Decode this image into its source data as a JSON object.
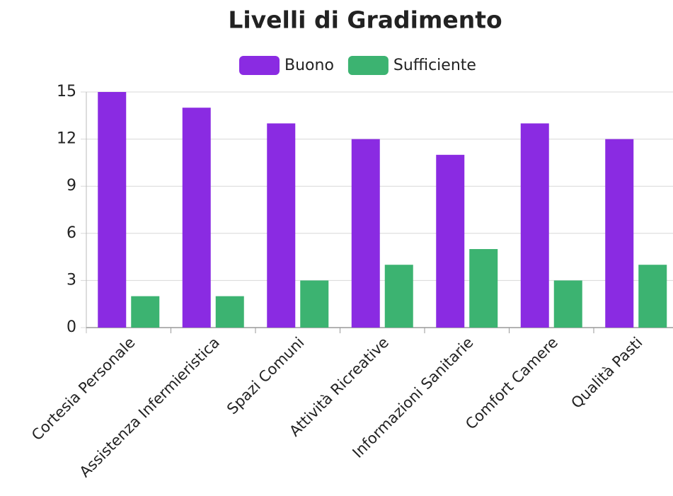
{
  "chart_data": {
    "type": "bar",
    "title": "Livelli di Gradimento",
    "categories": [
      "Cortesia Personale",
      "Assistenza Infermieristica",
      "Spazi Comuni",
      "Attività Ricreative",
      "Informazioni Sanitarie",
      "Comfort Camere",
      "Qualità Pasti"
    ],
    "series": [
      {
        "name": "Buono",
        "color": "#8a2be2",
        "values": [
          15,
          14,
          13,
          12,
          11,
          13,
          12
        ]
      },
      {
        "name": "Sufficiente",
        "color": "#3cb371",
        "values": [
          2,
          2,
          3,
          4,
          5,
          3,
          4
        ]
      }
    ],
    "ylim": [
      0,
      15
    ],
    "yticks": [
      0,
      3,
      6,
      9,
      12,
      15
    ],
    "grid": true,
    "legend": "top"
  }
}
